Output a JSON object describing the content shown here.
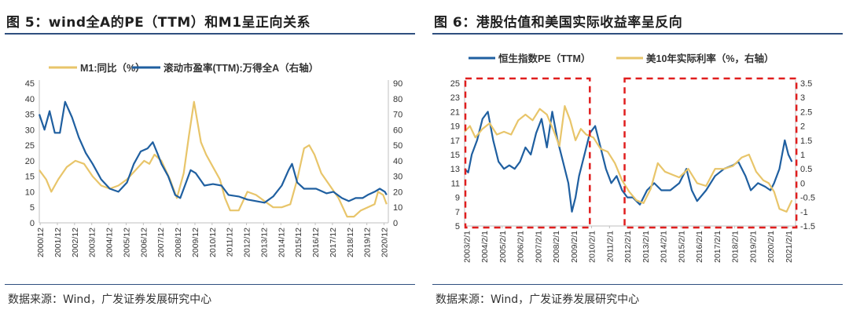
{
  "figures": [
    {
      "title": "图 5：wind全A的PE（TTM）和M1呈正向关系",
      "source": "数据来源：Wind，广发证券发展研究中心"
    },
    {
      "title": "图 6：港股估值和美国实际收益率呈反向",
      "source": "数据来源：Wind，广发证券发展研究中心"
    }
  ],
  "colors": {
    "blue": "#1f5fa0",
    "gold": "#e8c56a",
    "red": "#e01e1e",
    "rule": "#2f4f7f"
  },
  "chart_data": [
    {
      "type": "line",
      "title": "wind全A的PE（TTM）和M1呈正向关系",
      "x_ticks": [
        "2000/12",
        "2001/12",
        "2002/12",
        "2003/12",
        "2004/12",
        "2005/12",
        "2006/12",
        "2007/12",
        "2008/12",
        "2009/12",
        "2010/12",
        "2011/12",
        "2012/12",
        "2013/12",
        "2014/12",
        "2015/12",
        "2016/12",
        "2017/12",
        "2018/12",
        "2019/12",
        "2020/12"
      ],
      "x_range": [
        2000.9,
        2021.2
      ],
      "left_axis": {
        "range": [
          0,
          45
        ],
        "ticks": [
          "0",
          "5",
          "10",
          "15",
          "20",
          "25",
          "30",
          "35",
          "40",
          "45"
        ]
      },
      "right_axis": {
        "range": [
          0,
          90
        ],
        "ticks": [
          "0",
          "10",
          "20",
          "30",
          "40",
          "50",
          "60",
          "70",
          "80",
          "90"
        ]
      },
      "legend_position": "top",
      "series": [
        {
          "name": "M1:同比（%）",
          "axis": "left",
          "color": "#e8c56a",
          "x": [
            2000.9,
            2001.3,
            2001.6,
            2002.0,
            2002.5,
            2003.0,
            2003.5,
            2004.0,
            2004.5,
            2005.0,
            2005.5,
            2006.0,
            2006.5,
            2007.0,
            2007.3,
            2007.6,
            2008.0,
            2008.5,
            2008.9,
            2009.3,
            2009.6,
            2009.9,
            2010.3,
            2010.6,
            2011.0,
            2011.4,
            2011.7,
            2012.0,
            2012.5,
            2013.0,
            2013.5,
            2014.0,
            2014.5,
            2015.0,
            2015.5,
            2015.9,
            2016.3,
            2016.6,
            2016.9,
            2017.3,
            2017.8,
            2018.3,
            2018.8,
            2019.2,
            2019.6,
            2020.0,
            2020.4,
            2020.6,
            2020.9,
            2021.1
          ],
          "y": [
            17,
            14,
            10,
            14,
            18,
            20,
            19,
            15,
            12,
            11,
            12,
            14,
            17,
            20,
            19,
            22,
            20,
            14,
            8,
            16,
            28,
            39,
            26,
            22,
            18,
            14,
            8,
            4,
            4,
            10,
            9,
            7,
            5,
            5,
            6,
            14,
            24,
            25,
            22,
            16,
            12,
            8,
            2,
            2,
            4,
            5,
            6,
            10,
            9,
            6
          ]
        },
        {
          "name": "滚动市盈率(TTM):万得全A（右轴）",
          "axis": "right",
          "color": "#1f5fa0",
          "x": [
            2000.9,
            2001.2,
            2001.5,
            2001.8,
            2002.1,
            2002.4,
            2002.8,
            2003.2,
            2003.6,
            2004.0,
            2004.5,
            2005.0,
            2005.5,
            2006.0,
            2006.4,
            2006.8,
            2007.2,
            2007.5,
            2007.8,
            2008.0,
            2008.4,
            2008.8,
            2009.1,
            2009.4,
            2009.7,
            2010.0,
            2010.5,
            2011.0,
            2011.5,
            2011.9,
            2012.5,
            2013.0,
            2013.5,
            2014.0,
            2014.5,
            2015.0,
            2015.4,
            2015.6,
            2015.9,
            2016.3,
            2017.0,
            2017.6,
            2018.0,
            2018.5,
            2018.9,
            2019.3,
            2019.7,
            2020.0,
            2020.4,
            2020.7,
            2021.0,
            2021.1
          ],
          "y": [
            70,
            60,
            72,
            58,
            58,
            78,
            68,
            55,
            45,
            38,
            28,
            22,
            20,
            26,
            38,
            46,
            48,
            52,
            44,
            38,
            30,
            18,
            16,
            25,
            34,
            32,
            24,
            25,
            24,
            18,
            17,
            15,
            14,
            13,
            17,
            24,
            34,
            38,
            26,
            22,
            22,
            19,
            20,
            16,
            14,
            16,
            16,
            18,
            20,
            22,
            20,
            18
          ]
        }
      ]
    },
    {
      "type": "line",
      "title": "港股估值和美国实际收益率呈反向",
      "x_ticks": [
        "2003/2/1",
        "2004/2/1",
        "2005/2/1",
        "2006/2/1",
        "2007/2/1",
        "2008/2/1",
        "2009/2/1",
        "2010/2/1",
        "2011/2/1",
        "2012/2/1",
        "2013/2/1",
        "2014/2/1",
        "2015/2/1",
        "2016/2/1",
        "2017/2/1",
        "2018/2/1",
        "2019/2/1",
        "2020/2/1",
        "2021/2/1"
      ],
      "x_range": [
        2003.0,
        2021.5
      ],
      "left_axis": {
        "range": [
          5,
          25
        ],
        "ticks": [
          "5",
          "7",
          "9",
          "11",
          "13",
          "15",
          "17",
          "19",
          "21",
          "23",
          "25"
        ]
      },
      "right_axis": {
        "range": [
          -1.5,
          3.5
        ],
        "ticks": [
          "-1.5",
          "-1",
          "-0.5",
          "0",
          "0.5",
          "1",
          "1.5",
          "2",
          "2.5",
          "3",
          "3.5"
        ]
      },
      "legend_position": "top",
      "series": [
        {
          "name": "恒生指数PE（TTM）",
          "axis": "left",
          "color": "#1f5fa0",
          "x": [
            2003.0,
            2003.2,
            2003.4,
            2003.7,
            2004.0,
            2004.3,
            2004.6,
            2004.9,
            2005.2,
            2005.5,
            2005.8,
            2006.1,
            2006.4,
            2006.7,
            2007.0,
            2007.3,
            2007.6,
            2007.9,
            2008.2,
            2008.5,
            2008.8,
            2009.0,
            2009.2,
            2009.4,
            2009.7,
            2010.0,
            2010.3,
            2010.6,
            2010.9,
            2011.2,
            2011.5,
            2011.8,
            2012.1,
            2012.4,
            2012.8,
            2013.2,
            2013.6,
            2014.0,
            2014.5,
            2015.0,
            2015.4,
            2015.7,
            2016.0,
            2016.5,
            2017.0,
            2017.5,
            2018.0,
            2018.3,
            2018.7,
            2019.0,
            2019.4,
            2019.8,
            2020.1,
            2020.3,
            2020.6,
            2020.9,
            2021.1,
            2021.3
          ],
          "y": [
            13,
            12.5,
            15,
            17,
            20,
            21,
            17,
            14,
            13,
            13.5,
            13,
            14,
            16,
            15,
            18,
            20,
            16,
            21,
            17,
            14,
            11,
            7,
            9,
            12,
            15,
            18,
            19,
            16,
            13,
            11,
            12,
            10,
            9,
            9,
            8,
            10,
            11,
            10,
            10,
            11,
            13,
            10,
            8.5,
            10,
            12,
            13,
            13.5,
            14,
            12,
            10,
            11,
            10.5,
            10,
            11,
            13,
            17,
            15,
            14
          ]
        },
        {
          "name": "美10年实际利率（%，右轴）",
          "axis": "right",
          "color": "#e8c56a",
          "x": [
            2003.0,
            2003.3,
            2003.6,
            2004.0,
            2004.4,
            2004.8,
            2005.2,
            2005.6,
            2006.0,
            2006.4,
            2006.8,
            2007.2,
            2007.6,
            2008.0,
            2008.3,
            2008.6,
            2008.9,
            2009.2,
            2009.5,
            2009.8,
            2010.2,
            2010.6,
            2011.0,
            2011.4,
            2011.8,
            2012.2,
            2012.6,
            2013.0,
            2013.4,
            2013.8,
            2014.2,
            2014.6,
            2015.0,
            2015.5,
            2016.0,
            2016.5,
            2017.0,
            2017.5,
            2018.0,
            2018.5,
            2018.9,
            2019.3,
            2019.7,
            2020.0,
            2020.3,
            2020.6,
            2021.0,
            2021.3
          ],
          "y": [
            1.8,
            2.0,
            1.6,
            1.9,
            2.1,
            1.7,
            1.8,
            1.7,
            2.2,
            2.4,
            2.2,
            2.6,
            2.4,
            1.8,
            1.3,
            2.7,
            2.2,
            1.5,
            1.9,
            1.7,
            1.6,
            1.2,
            1.1,
            0.7,
            0.1,
            -0.3,
            -0.6,
            -0.7,
            -0.2,
            0.7,
            0.4,
            0.3,
            0.2,
            0.5,
            0.0,
            -0.1,
            0.5,
            0.5,
            0.6,
            0.9,
            1.0,
            0.4,
            0.1,
            0.0,
            -0.3,
            -0.9,
            -1.0,
            -0.6
          ]
        }
      ]
    }
  ]
}
